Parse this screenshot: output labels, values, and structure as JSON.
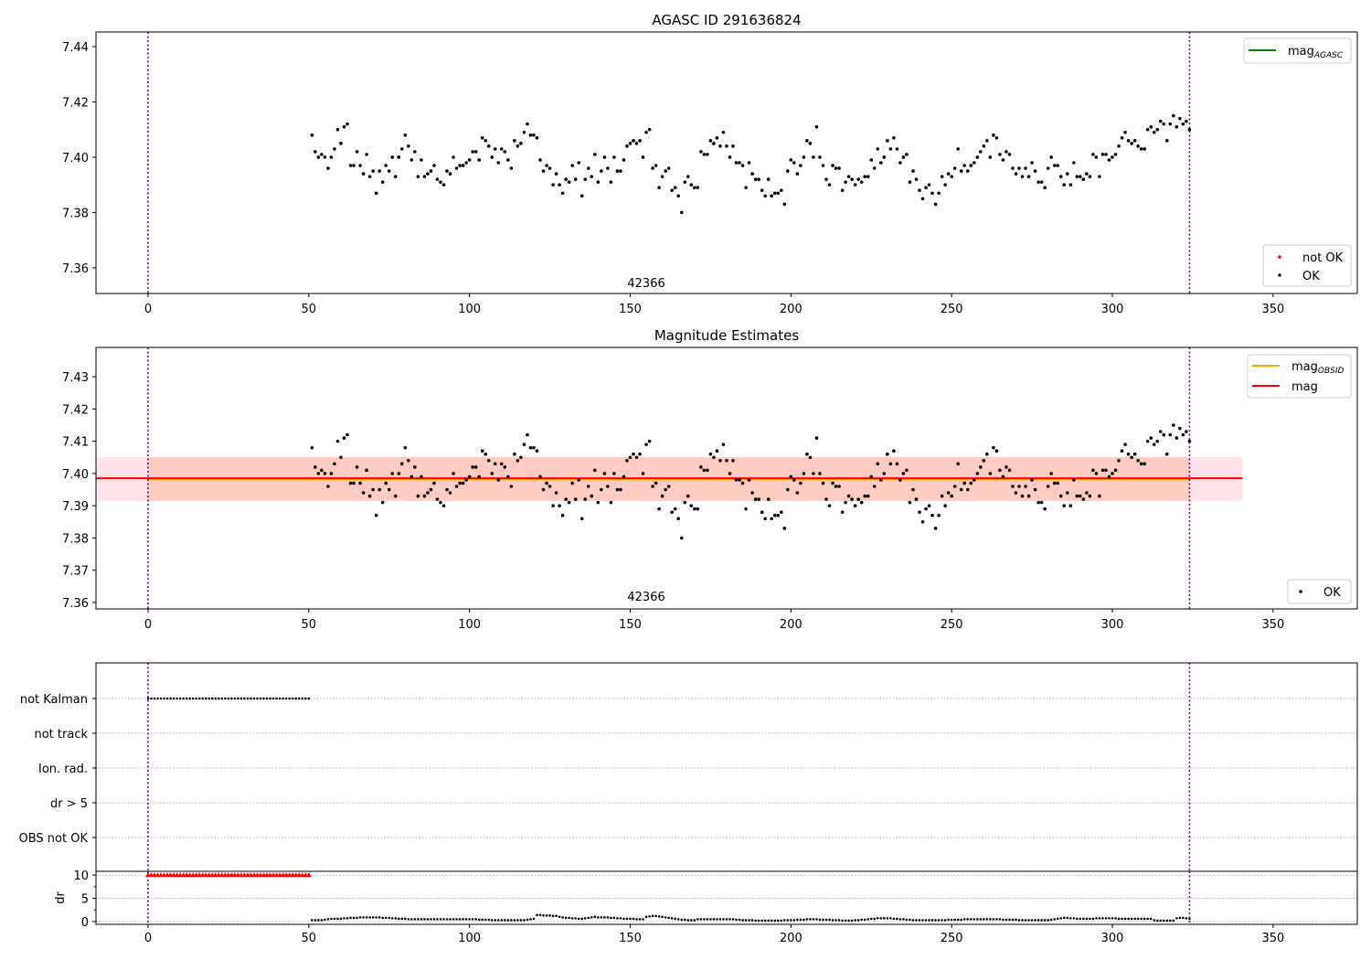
{
  "chart_data": [
    {
      "type": "scatter",
      "title": "AGASC ID 291636824",
      "xlim": [
        -16.2,
        376.2
      ],
      "ylim": [
        7.3507,
        7.4453
      ],
      "xticks": [
        0,
        50,
        100,
        150,
        200,
        250,
        300,
        350
      ],
      "yticks": [
        7.36,
        7.38,
        7.4,
        7.42,
        7.44
      ],
      "vlines": [
        0,
        324
      ],
      "annotation": {
        "text": "42366",
        "x": 155,
        "y": 7.353
      },
      "legend_upper": {
        "placement": "top-right",
        "entries": [
          {
            "base": "mag",
            "sub": "AGASC",
            "color": "#008000",
            "kind": "line"
          }
        ]
      },
      "legend_lower": {
        "placement": "bottom-right",
        "entries": [
          {
            "label": "not OK",
            "color": "#ff0000",
            "kind": "point"
          },
          {
            "label": "OK",
            "color": "#000000",
            "kind": "point"
          }
        ]
      },
      "series_ref": "mag_points"
    },
    {
      "type": "scatter",
      "title": "Magnitude Estimates",
      "xlim": [
        -16.2,
        376.2
      ],
      "ylim": [
        7.358,
        7.4391
      ],
      "xticks": [
        0,
        50,
        100,
        150,
        200,
        250,
        300,
        350
      ],
      "yticks": [
        7.36,
        7.37,
        7.38,
        7.39,
        7.4,
        7.41,
        7.42,
        7.43
      ],
      "vlines": [
        0,
        324
      ],
      "annotation": {
        "text": "42366",
        "x": 155,
        "y": 7.3605
      },
      "mag": {
        "value": 7.3985,
        "low": 7.3915,
        "high": 7.4051,
        "x_range": [
          -16.2,
          340.5
        ],
        "color": "#ff0000",
        "band_color": "#ffc0cb"
      },
      "mag_obsid": {
        "value": 7.3985,
        "low": 7.3915,
        "high": 7.4051,
        "x_range": [
          0,
          324
        ],
        "color": "#ffa500",
        "band_color": "#ffa07a"
      },
      "legend_upper": {
        "placement": "top-right",
        "entries": [
          {
            "base": "mag",
            "sub": "OBSID",
            "color": "#ffa500",
            "kind": "line"
          },
          {
            "base": "mag",
            "sub": "",
            "color": "#ff0000",
            "kind": "line"
          }
        ]
      },
      "legend_lower": {
        "placement": "bottom-right",
        "entries": [
          {
            "label": "OK",
            "color": "#000000",
            "kind": "point"
          }
        ]
      },
      "series_ref": "mag_points"
    },
    {
      "type": "scatter",
      "title": "",
      "xlim": [
        -16.2,
        376.2
      ],
      "flag_labels": [
        "not Kalman",
        "not track",
        "Ion. rad.",
        "dr > 5",
        "OBS not OK"
      ],
      "flags": {
        "not Kalman": {
          "x_start": 0,
          "x_end": 50
        }
      },
      "vlines": [
        0,
        324
      ]
    },
    {
      "type": "scatter",
      "ylabel": "dr",
      "xlim": [
        -16.2,
        376.2
      ],
      "ylim": [
        -0.6,
        10.8
      ],
      "yticks": [
        0,
        5,
        10
      ],
      "xticks": [
        0,
        50,
        100,
        150,
        200,
        250,
        300,
        350
      ],
      "vlines": [
        0,
        324
      ],
      "not_ok": {
        "x_start": 0,
        "x_end": 50,
        "dr": 10,
        "color": "#ff0000",
        "marker": "triangle"
      },
      "ok_x_start": 51,
      "ok_dr": [
        0.3,
        0.3,
        0.3,
        0.3,
        0.4,
        0.5,
        0.6,
        0.6,
        0.6,
        0.6,
        0.7,
        0.7,
        0.8,
        0.8,
        0.8,
        0.9,
        0.9,
        0.9,
        0.9,
        0.9,
        0.9,
        0.9,
        0.8,
        0.8,
        0.8,
        0.7,
        0.7,
        0.6,
        0.6,
        0.6,
        0.5,
        0.5,
        0.5,
        0.5,
        0.5,
        0.5,
        0.5,
        0.5,
        0.5,
        0.5,
        0.5,
        0.5,
        0.5,
        0.5,
        0.5,
        0.5,
        0.5,
        0.5,
        0.5,
        0.5,
        0.5,
        0.5,
        0.4,
        0.4,
        0.4,
        0.4,
        0.3,
        0.3,
        0.3,
        0.3,
        0.3,
        0.3,
        0.3,
        0.3,
        0.3,
        0.3,
        0.3,
        0.4,
        0.5,
        0.6,
        1.4,
        1.4,
        1.3,
        1.3,
        1.3,
        1.2,
        1.2,
        1.0,
        0.9,
        0.8,
        0.8,
        0.7,
        0.7,
        0.6,
        0.6,
        0.7,
        0.8,
        0.9,
        1.0,
        0.9,
        0.9,
        0.9,
        0.9,
        0.8,
        0.8,
        0.7,
        0.7,
        0.6,
        0.6,
        0.6,
        0.6,
        0.5,
        0.5,
        0.5,
        1.0,
        1.1,
        1.2,
        1.2,
        1.1,
        1.0,
        0.9,
        0.8,
        0.7,
        0.6,
        0.5,
        0.4,
        0.4,
        0.3,
        0.3,
        0.3,
        0.5,
        0.5,
        0.5,
        0.5,
        0.5,
        0.5,
        0.5,
        0.5,
        0.5,
        0.5,
        0.5,
        0.5,
        0.4,
        0.4,
        0.3,
        0.3,
        0.3,
        0.3,
        0.2,
        0.2,
        0.2,
        0.2,
        0.2,
        0.2,
        0.2,
        0.2,
        0.2,
        0.3,
        0.3,
        0.3,
        0.3,
        0.4,
        0.4,
        0.4,
        0.5,
        0.5,
        0.5,
        0.5,
        0.4,
        0.4,
        0.4,
        0.4,
        0.3,
        0.3,
        0.3,
        0.2,
        0.2,
        0.2,
        0.2,
        0.3,
        0.3,
        0.4,
        0.4,
        0.5,
        0.6,
        0.6,
        0.7,
        0.7,
        0.7,
        0.7,
        0.7,
        0.6,
        0.6,
        0.5,
        0.5,
        0.4,
        0.4,
        0.3,
        0.3,
        0.3,
        0.3,
        0.3,
        0.3,
        0.3,
        0.3,
        0.3,
        0.3,
        0.3,
        0.4,
        0.4,
        0.4,
        0.4,
        0.4,
        0.5,
        0.5,
        0.5,
        0.5,
        0.5,
        0.5,
        0.5,
        0.5,
        0.5,
        0.5,
        0.5,
        0.5,
        0.4,
        0.4,
        0.4,
        0.4,
        0.4,
        0.3,
        0.3,
        0.3,
        0.3,
        0.3,
        0.3,
        0.3,
        0.3,
        0.3,
        0.3,
        0.4,
        0.5,
        0.6,
        0.7,
        0.8,
        0.8,
        0.7,
        0.7,
        0.6,
        0.6,
        0.6,
        0.6,
        0.6,
        0.6,
        0.7,
        0.7,
        0.7,
        0.7,
        0.7,
        0.7,
        0.7,
        0.6,
        0.6,
        0.6,
        0.6,
        0.6,
        0.6,
        0.6,
        0.6,
        0.6,
        0.6,
        0.6,
        0.3,
        0.2,
        0.2,
        0.2,
        0.2,
        0.2,
        0.2,
        0.7,
        0.8,
        0.8,
        0.7,
        0.6
      ]
    }
  ],
  "mag_points": {
    "x_start": 51,
    "values": [
      7.408,
      7.402,
      7.4,
      7.401,
      7.4,
      7.396,
      7.4,
      7.403,
      7.41,
      7.405,
      7.411,
      7.412,
      7.397,
      7.397,
      7.402,
      7.397,
      7.394,
      7.401,
      7.393,
      7.395,
      7.387,
      7.395,
      7.391,
      7.397,
      7.395,
      7.4,
      7.393,
      7.4,
      7.403,
      7.408,
      7.404,
      7.399,
      7.402,
      7.393,
      7.399,
      7.393,
      7.394,
      7.395,
      7.397,
      7.392,
      7.391,
      7.39,
      7.395,
      7.394,
      7.4,
      7.396,
      7.397,
      7.397,
      7.398,
      7.399,
      7.402,
      7.402,
      7.399,
      7.407,
      7.406,
      7.404,
      7.4,
      7.403,
      7.398,
      7.403,
      7.402,
      7.399,
      7.396,
      7.406,
      7.404,
      7.405,
      7.409,
      7.412,
      7.408,
      7.408,
      7.407,
      7.399,
      7.395,
      7.397,
      7.396,
      7.39,
      7.394,
      7.39,
      7.387,
      7.392,
      7.391,
      7.397,
      7.392,
      7.398,
      7.386,
      7.392,
      7.396,
      7.393,
      7.401,
      7.391,
      7.395,
      7.4,
      7.396,
      7.391,
      7.4,
      7.395,
      7.395,
      7.399,
      7.404,
      7.405,
      7.406,
      7.405,
      7.406,
      7.4,
      7.409,
      7.41,
      7.396,
      7.397,
      7.389,
      7.393,
      7.395,
      7.396,
      7.388,
      7.389,
      7.386,
      7.38,
      7.391,
      7.393,
      7.39,
      7.389,
      7.389,
      7.402,
      7.401,
      7.401,
      7.406,
      7.405,
      7.407,
      7.404,
      7.409,
      7.404,
      7.4,
      7.404,
      7.398,
      7.398,
      7.397,
      7.389,
      7.398,
      7.394,
      7.392,
      7.392,
      7.388,
      7.386,
      7.392,
      7.386,
      7.387,
      7.387,
      7.388,
      7.383,
      7.395,
      7.399,
      7.398,
      7.394,
      7.397,
      7.4,
      7.406,
      7.405,
      7.4,
      7.411,
      7.4,
      7.397,
      7.392,
      7.39,
      7.397,
      7.396,
      7.396,
      7.388,
      7.391,
      7.393,
      7.392,
      7.39,
      7.392,
      7.391,
      7.393,
      7.393,
      7.399,
      7.396,
      7.403,
      7.398,
      7.4,
      7.406,
      7.403,
      7.407,
      7.403,
      7.398,
      7.4,
      7.401,
      7.391,
      7.395,
      7.392,
      7.388,
      7.385,
      7.389,
      7.39,
      7.387,
      7.383,
      7.387,
      7.393,
      7.39,
      7.394,
      7.393,
      7.396,
      7.403,
      7.395,
      7.397,
      7.395,
      7.397,
      7.398,
      7.4,
      7.402,
      7.404,
      7.406,
      7.4,
      7.408,
      7.407,
      7.401,
      7.399,
      7.402,
      7.401,
      7.396,
      7.394,
      7.396,
      7.393,
      7.396,
      7.393,
      7.398,
      7.395,
      7.391,
      7.391,
      7.389,
      7.396,
      7.4,
      7.397,
      7.397,
      7.393,
      7.39,
      7.394,
      7.39,
      7.398,
      7.393,
      7.393,
      7.392,
      7.394,
      7.393,
      7.401,
      7.4,
      7.393,
      7.401,
      7.401,
      7.399,
      7.4,
      7.401,
      7.404,
      7.407,
      7.409,
      7.406,
      7.405,
      7.406,
      7.404,
      7.403,
      7.403,
      7.41,
      7.411,
      7.409,
      7.41,
      7.413,
      7.412,
      7.406,
      7.412,
      7.415,
      7.411,
      7.414,
      7.412,
      7.413,
      7.41
    ]
  },
  "colors": {
    "vline": "#800080",
    "grid": "#b0b0b0",
    "ok": "#000000",
    "not_ok": "#ff0000"
  }
}
